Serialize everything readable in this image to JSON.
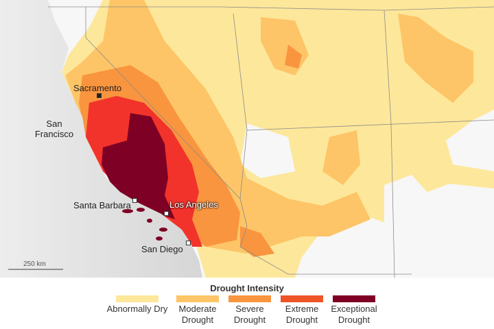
{
  "map": {
    "cities": [
      {
        "label": "Sacramento"
      },
      {
        "label": "San Francisco"
      },
      {
        "label": "Santa Barbara"
      },
      {
        "label": "Los Angeles"
      },
      {
        "label": "San Diego"
      }
    ]
  },
  "scale_bar": {
    "label": "250 km"
  },
  "legend": {
    "title": "Drought Intensity",
    "items": [
      {
        "label": "Abnormally Dry",
        "color": "#fde79a"
      },
      {
        "label": "Moderate Drought",
        "color": "#fdc567"
      },
      {
        "label": "Severe Drought",
        "color": "#f9953f"
      },
      {
        "label": "Extreme Drought",
        "color": "#ee5426"
      },
      {
        "label": "Exceptional Drought",
        "color": "#7e0024"
      }
    ]
  }
}
